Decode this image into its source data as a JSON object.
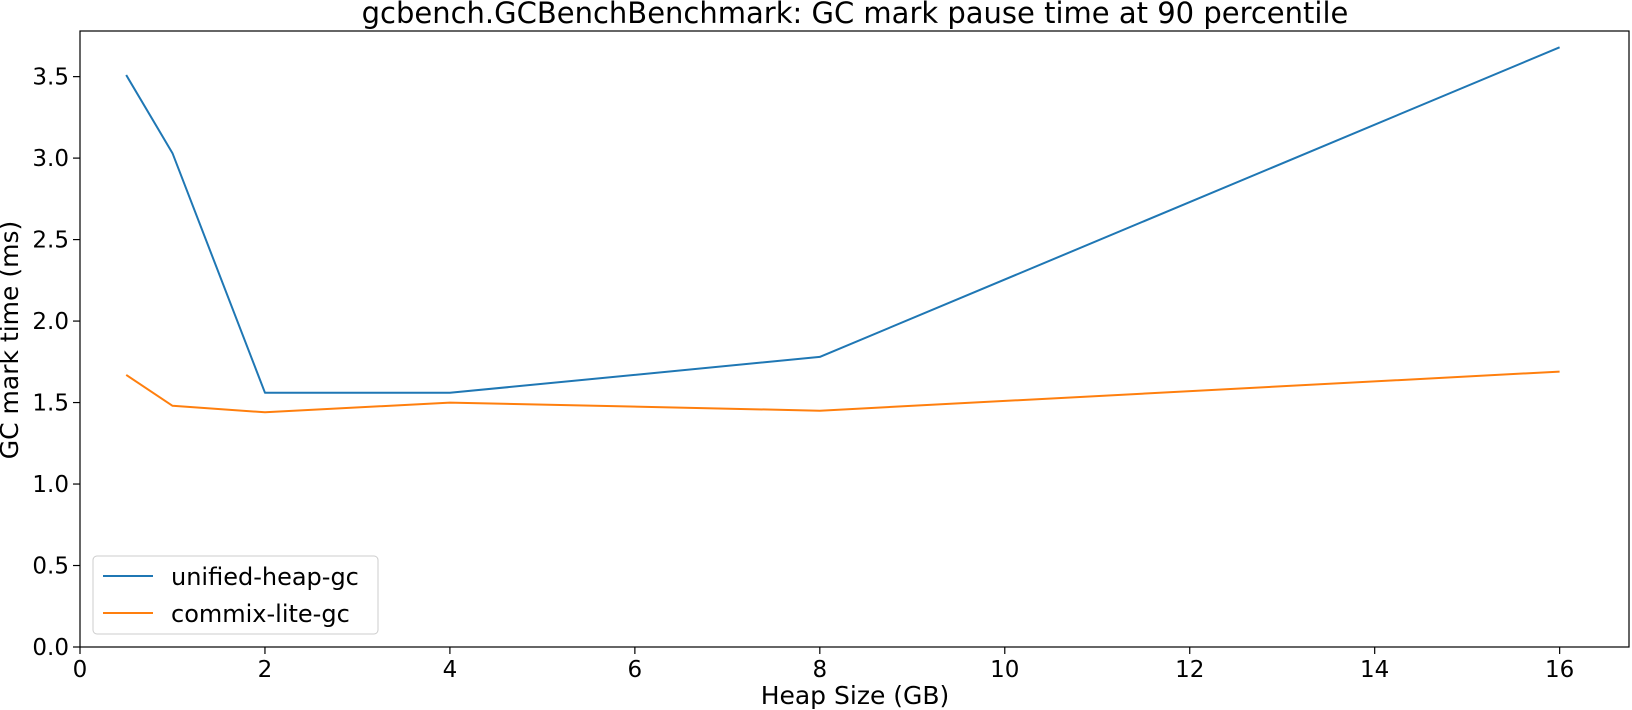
{
  "chart_data": {
    "type": "line",
    "title": "gcbench.GCBenchBenchmark: GC mark pause time at 90 percentile",
    "xlabel": "Heap Size (GB)",
    "ylabel": "GC mark time (ms)",
    "xlim": [
      0,
      16.75
    ],
    "ylim": [
      0,
      3.78
    ],
    "xticks": [
      0,
      2,
      4,
      6,
      8,
      10,
      12,
      14,
      16
    ],
    "xtick_labels": [
      "0",
      "2",
      "4",
      "6",
      "8",
      "10",
      "12",
      "14",
      "16"
    ],
    "yticks": [
      0.0,
      0.5,
      1.0,
      1.5,
      2.0,
      2.5,
      3.0,
      3.5
    ],
    "ytick_labels": [
      "0.0",
      "0.5",
      "1.0",
      "1.5",
      "2.0",
      "2.5",
      "3.0",
      "3.5"
    ],
    "grid": false,
    "legend_position": "lower-left",
    "series": [
      {
        "name": "unified-heap-gc",
        "color": "#1f77b4",
        "x": [
          0.5,
          1,
          2,
          4,
          8,
          16
        ],
        "y": [
          3.51,
          3.03,
          1.56,
          1.56,
          1.78,
          3.68
        ]
      },
      {
        "name": "commix-lite-gc",
        "color": "#ff7f0e",
        "x": [
          0.5,
          1,
          2,
          4,
          8,
          16
        ],
        "y": [
          1.67,
          1.48,
          1.44,
          1.5,
          1.45,
          1.69
        ]
      }
    ]
  }
}
